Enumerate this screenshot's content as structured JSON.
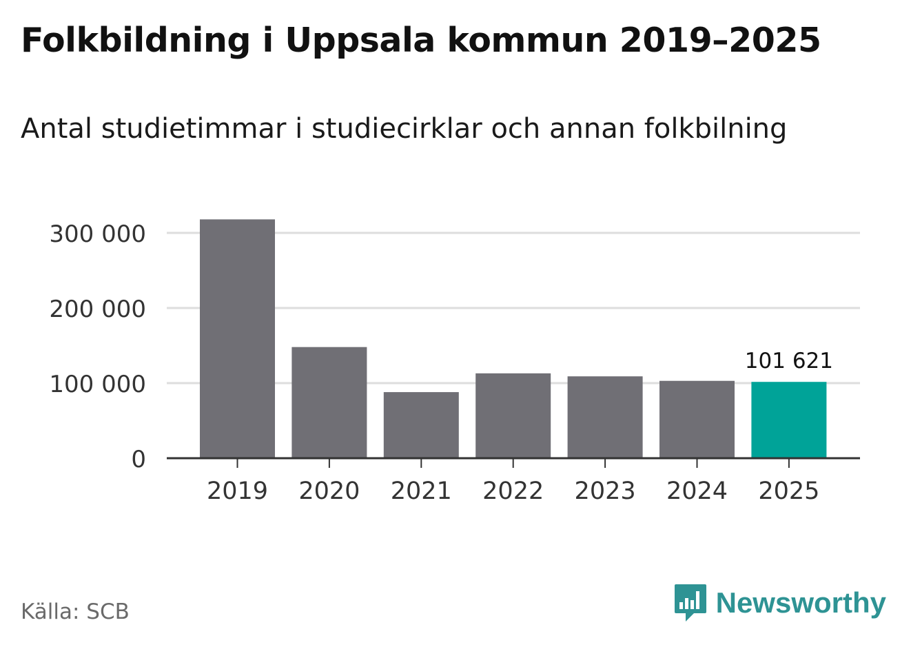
{
  "header": {
    "title": "Folkbildning i Uppsala kommun 2019–2025",
    "subtitle": "Antal studietimmar i studiecirklar och annan folkbilning"
  },
  "footer": {
    "source": "Källa: SCB",
    "brand_name": "Newsworthy",
    "brand_icon": "newsworthy-logo-icon"
  },
  "colors": {
    "bar_default": "#706f75",
    "bar_highlight": "#00a398",
    "brand": "#2e9394",
    "gridline": "#dddddd",
    "axis": "#333333"
  },
  "chart_data": {
    "type": "bar",
    "title": "Folkbildning i Uppsala kommun 2019–2025",
    "subtitle": "Antal studietimmar i studiecirklar och annan folkbilning",
    "xlabel": "",
    "ylabel": "",
    "categories": [
      "2019",
      "2020",
      "2021",
      "2022",
      "2023",
      "2024",
      "2025"
    ],
    "values": [
      318000,
      148000,
      88000,
      113000,
      109000,
      103000,
      101621
    ],
    "highlight_index": 6,
    "data_labels": [
      {
        "index": 6,
        "text": "101 621"
      }
    ],
    "ylim": [
      0,
      330000
    ],
    "yticks": [
      0,
      100000,
      200000,
      300000
    ],
    "ytick_labels": [
      "0",
      "100 000",
      "200 000",
      "300 000"
    ],
    "grid": true,
    "legend": "none"
  }
}
